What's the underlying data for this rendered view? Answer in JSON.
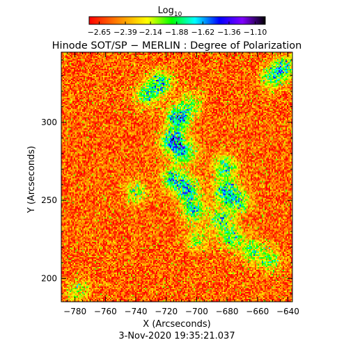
{
  "chart_data": {
    "type": "heatmap",
    "title": "Hinode SOT/SP − MERLIN : Degree of Polarization",
    "timestamp": "3-Nov-2020 19:35:21.037",
    "xlabel": "X (Arcseconds)",
    "ylabel": "Y (Arcseconds)",
    "xlim": [
      -789,
      -637
    ],
    "ylim": [
      185,
      345
    ],
    "x_ticks": [
      -780,
      -760,
      -740,
      -720,
      -700,
      -680,
      -660,
      -640
    ],
    "x_tick_labels": [
      "−780",
      "−760",
      "−740",
      "−720",
      "−700",
      "−680",
      "−660",
      "−640"
    ],
    "y_ticks": [
      200,
      250,
      300
    ],
    "y_tick_labels": [
      "200",
      "250",
      "300"
    ],
    "colorbar": {
      "title": "Log",
      "title_subscript": "10",
      "range": [
        -2.75,
        -1.0
      ],
      "ticks": [
        -2.65,
        -2.39,
        -2.14,
        -1.88,
        -1.62,
        -1.36,
        -1.1
      ],
      "tick_labels": [
        "−2.65",
        "−2.39",
        "−2.14",
        "−1.88",
        "−1.62",
        "−1.36",
        "−1.10"
      ],
      "colormap": [
        "#ff0000",
        "#ff8000",
        "#ffff00",
        "#00ff00",
        "#00ffff",
        "#0000ff",
        "#8000ff",
        "#000000"
      ]
    },
    "background_level": -2.55,
    "features": [
      {
        "x": -712,
        "y": 303,
        "amplitude": 0.95
      },
      {
        "x": -716,
        "y": 288,
        "amplitude": 0.9
      },
      {
        "x": -708,
        "y": 281,
        "amplitude": 0.7
      },
      {
        "x": -715,
        "y": 264,
        "amplitude": 0.75
      },
      {
        "x": -706,
        "y": 257,
        "amplitude": 0.7
      },
      {
        "x": -702,
        "y": 244,
        "amplitude": 0.7
      },
      {
        "x": -681,
        "y": 271,
        "amplitude": 0.7
      },
      {
        "x": -681,
        "y": 256,
        "amplitude": 0.75
      },
      {
        "x": -672,
        "y": 249,
        "amplitude": 0.6
      },
      {
        "x": -684,
        "y": 238,
        "amplitude": 0.6
      },
      {
        "x": -677,
        "y": 226,
        "amplitude": 0.6
      },
      {
        "x": -664,
        "y": 218,
        "amplitude": 0.55
      },
      {
        "x": -652,
        "y": 212,
        "amplitude": 0.5
      },
      {
        "x": -643,
        "y": 335,
        "amplitude": 0.7
      },
      {
        "x": -651,
        "y": 328,
        "amplitude": 0.5
      },
      {
        "x": -724,
        "y": 325,
        "amplitude": 0.75
      },
      {
        "x": -733,
        "y": 317,
        "amplitude": 0.55
      },
      {
        "x": -703,
        "y": 312,
        "amplitude": 0.45
      },
      {
        "x": -740,
        "y": 255,
        "amplitude": 0.45
      },
      {
        "x": -778,
        "y": 192,
        "amplitude": 0.4
      },
      {
        "x": -700,
        "y": 225,
        "amplitude": 0.45
      }
    ]
  }
}
